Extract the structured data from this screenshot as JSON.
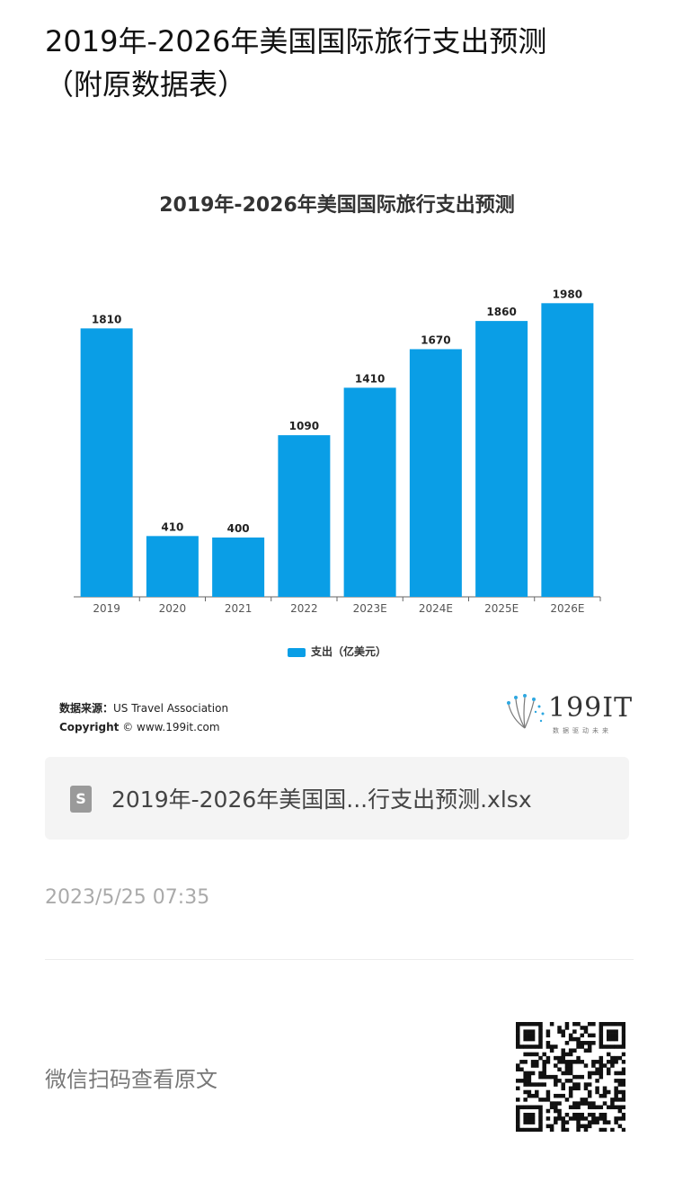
{
  "article": {
    "title_line1": "2019年-2026年美国国际旅行支出预测",
    "title_line2": "（附原数据表）"
  },
  "chart_data": {
    "type": "bar",
    "title": "2019年-2026年美国国际旅行支出预测",
    "categories": [
      "2019",
      "2020",
      "2021",
      "2022",
      "2023E",
      "2024E",
      "2025E",
      "2026E"
    ],
    "series": [
      {
        "name": "支出（亿美元）",
        "values": [
          1810,
          410,
          400,
          1090,
          1410,
          1670,
          1860,
          1980
        ],
        "color": "#0a9ee6"
      }
    ],
    "ylim": [
      0,
      2000
    ],
    "grid": false,
    "legend_position": "bottom"
  },
  "source": {
    "label": "数据来源：",
    "value": "US Travel Association",
    "copyright_label": "Copyright",
    "copyright_symbol": "©",
    "copyright_site": "www.199it.com"
  },
  "logo": {
    "text": "199IT",
    "subtitle": "数据驱动未来"
  },
  "attachment": {
    "icon": "S",
    "filename": "2019年-2026年美国国...行支出预测.xlsx"
  },
  "timestamp": "2023/5/25 07:35",
  "footer": {
    "qr_label": "微信扫码查看原文"
  }
}
